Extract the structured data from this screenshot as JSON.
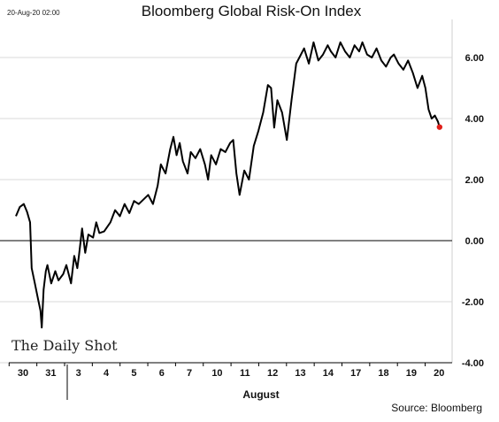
{
  "chart_data": {
    "type": "line",
    "title": "Bloomberg Global Risk-On Index",
    "timestamp": "20-Aug-20 02:00",
    "xlabel": "August",
    "ylabel": "",
    "ylim": [
      -4,
      7
    ],
    "yticks": [
      "6.00",
      "4.00",
      "2.00",
      "0.00",
      "-2.00",
      "-4.00"
    ],
    "ytick_values": [
      6,
      4,
      2,
      0,
      -2,
      -4
    ],
    "xticks": [
      "30",
      "31",
      "3",
      "4",
      "5",
      "6",
      "7",
      "10",
      "11",
      "12",
      "13",
      "14",
      "17",
      "18",
      "19",
      "20"
    ],
    "grid": true,
    "zero_line": true,
    "last_point_color": "#e0201b",
    "line_color": "#000000",
    "series": [
      {
        "values": [
          [
            0.0,
            0.8
          ],
          [
            0.12,
            1.1
          ],
          [
            0.25,
            1.2
          ],
          [
            0.35,
            0.95
          ],
          [
            0.45,
            0.6
          ],
          [
            0.5,
            -0.9
          ],
          [
            0.6,
            -1.4
          ],
          [
            0.7,
            -1.9
          ],
          [
            0.78,
            -2.3
          ],
          [
            0.82,
            -2.85
          ],
          [
            0.88,
            -1.6
          ],
          [
            0.95,
            -1.0
          ],
          [
            1.0,
            -0.8
          ],
          [
            1.12,
            -1.4
          ],
          [
            1.25,
            -1.0
          ],
          [
            1.35,
            -1.3
          ],
          [
            1.5,
            -1.1
          ],
          [
            1.6,
            -0.8
          ],
          [
            1.75,
            -1.4
          ],
          [
            1.85,
            -0.5
          ],
          [
            1.95,
            -0.9
          ],
          [
            2.0,
            -0.5
          ],
          [
            2.1,
            0.4
          ],
          [
            2.2,
            -0.4
          ],
          [
            2.3,
            0.2
          ],
          [
            2.45,
            0.1
          ],
          [
            2.55,
            0.6
          ],
          [
            2.65,
            0.25
          ],
          [
            2.8,
            0.3
          ],
          [
            3.0,
            0.6
          ],
          [
            3.15,
            1.0
          ],
          [
            3.3,
            0.8
          ],
          [
            3.45,
            1.2
          ],
          [
            3.6,
            0.9
          ],
          [
            3.75,
            1.3
          ],
          [
            3.9,
            1.2
          ],
          [
            4.0,
            1.3
          ],
          [
            4.2,
            1.5
          ],
          [
            4.35,
            1.2
          ],
          [
            4.5,
            1.8
          ],
          [
            4.6,
            2.5
          ],
          [
            4.75,
            2.2
          ],
          [
            4.9,
            3.0
          ],
          [
            5.0,
            3.4
          ],
          [
            5.1,
            2.8
          ],
          [
            5.2,
            3.2
          ],
          [
            5.3,
            2.6
          ],
          [
            5.45,
            2.2
          ],
          [
            5.55,
            2.9
          ],
          [
            5.7,
            2.7
          ],
          [
            5.85,
            3.0
          ],
          [
            6.0,
            2.5
          ],
          [
            6.1,
            2.0
          ],
          [
            6.2,
            2.8
          ],
          [
            6.35,
            2.5
          ],
          [
            6.5,
            3.0
          ],
          [
            6.65,
            2.9
          ],
          [
            6.8,
            3.2
          ],
          [
            6.9,
            3.3
          ],
          [
            7.0,
            2.2
          ],
          [
            7.1,
            1.5
          ],
          [
            7.25,
            2.3
          ],
          [
            7.4,
            2.0
          ],
          [
            7.55,
            3.1
          ],
          [
            7.7,
            3.6
          ],
          [
            7.85,
            4.2
          ],
          [
            8.0,
            5.1
          ],
          [
            8.1,
            5.0
          ],
          [
            8.2,
            3.7
          ],
          [
            8.3,
            4.6
          ],
          [
            8.45,
            4.2
          ],
          [
            8.6,
            3.3
          ],
          [
            8.75,
            4.6
          ],
          [
            8.9,
            5.8
          ],
          [
            9.0,
            6.0
          ],
          [
            9.15,
            6.3
          ],
          [
            9.3,
            5.8
          ],
          [
            9.45,
            6.5
          ],
          [
            9.6,
            5.9
          ],
          [
            9.75,
            6.1
          ],
          [
            9.9,
            6.4
          ],
          [
            10.0,
            6.2
          ],
          [
            10.15,
            6.0
          ],
          [
            10.3,
            6.5
          ],
          [
            10.45,
            6.2
          ],
          [
            10.6,
            6.0
          ],
          [
            10.75,
            6.4
          ],
          [
            10.9,
            6.2
          ],
          [
            11.0,
            6.5
          ],
          [
            11.15,
            6.1
          ],
          [
            11.3,
            6.0
          ],
          [
            11.45,
            6.3
          ],
          [
            11.6,
            5.9
          ],
          [
            11.75,
            5.7
          ],
          [
            11.9,
            6.0
          ],
          [
            12.0,
            6.1
          ],
          [
            12.15,
            5.8
          ],
          [
            12.3,
            5.6
          ],
          [
            12.45,
            5.9
          ],
          [
            12.6,
            5.5
          ],
          [
            12.75,
            5.0
          ],
          [
            12.9,
            5.4
          ],
          [
            13.0,
            5.0
          ],
          [
            13.1,
            4.3
          ],
          [
            13.2,
            4.0
          ],
          [
            13.3,
            4.1
          ],
          [
            13.4,
            3.9
          ],
          [
            13.45,
            3.72
          ]
        ]
      }
    ],
    "source": "Source: Bloomberg",
    "brand": "The Daily Shot"
  }
}
